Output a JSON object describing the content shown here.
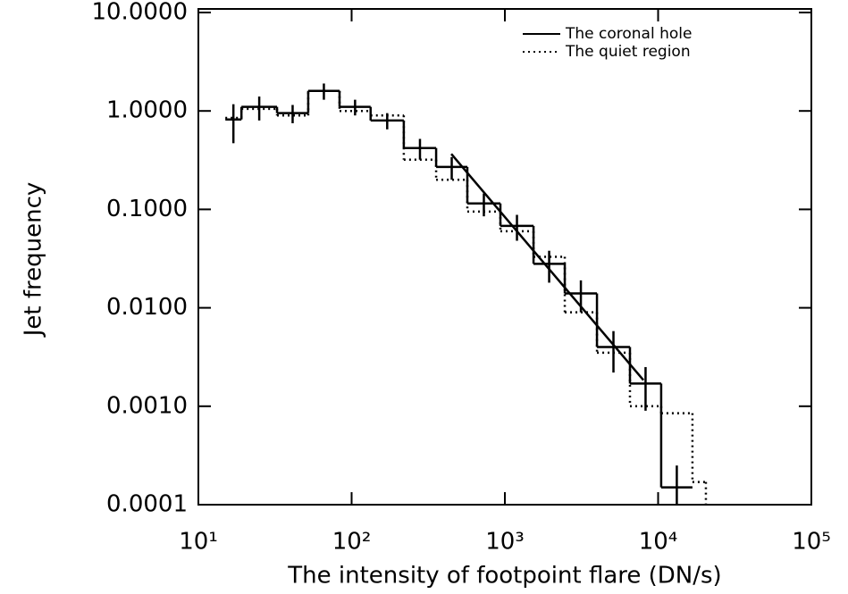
{
  "chart_data": {
    "type": "histogram",
    "xlabel": "The intensity of footpoint flare (DN/s)",
    "ylabel": "Jet frequency",
    "log_x": true,
    "log_y": true,
    "legend": "upper right",
    "bins": [
      15.0,
      19.1,
      32.6,
      52.1,
      83.4,
      133,
      219,
      356,
      569,
      935,
      1538,
      2460,
      3990,
      6550,
      10470,
      16750,
      20500
    ],
    "series": [
      {
        "name": "The coronal hole",
        "color": "#000000",
        "style": "solid",
        "values": [
          0.82,
          1.1,
          0.95,
          1.6,
          1.1,
          0.8,
          0.42,
          0.27,
          0.115,
          0.068,
          0.028,
          0.014,
          0.004,
          0.0017,
          0.00015,
          null
        ],
        "errors": [
          0.35,
          0.3,
          0.2,
          0.3,
          0.2,
          0.15,
          0.1,
          0.07,
          0.03,
          0.02,
          0.01,
          0.005,
          0.0018,
          0.0008,
          0.0001,
          null
        ]
      },
      {
        "name": "The quiet region",
        "color": "#000000",
        "style": "dotted",
        "values": [
          0.85,
          1.05,
          0.9,
          1.6,
          1.0,
          0.9,
          0.32,
          0.2,
          0.095,
          0.06,
          0.033,
          0.009,
          0.0035,
          0.001,
          0.00085,
          0.00017
        ]
      }
    ],
    "fit": {
      "x": [
        447,
        8020
      ],
      "y": [
        0.366,
        0.00184
      ]
    },
    "xlim": [
      10,
      100000
    ],
    "xticks": [
      {
        "value": 10,
        "label": "10¹"
      },
      {
        "value": 100,
        "label": "10²"
      },
      {
        "value": 1000,
        "label": "10³"
      },
      {
        "value": 10000,
        "label": "10⁴"
      },
      {
        "value": 100000,
        "label": "10⁵"
      }
    ],
    "ylim": [
      0.0001,
      10
    ],
    "yticks": [
      {
        "value": 0.0001,
        "label": "0.0001"
      },
      {
        "value": 0.001,
        "label": "0.0010"
      },
      {
        "value": 0.01,
        "label": "0.0100"
      },
      {
        "value": 0.1,
        "label": "0.1000"
      },
      {
        "value": 1,
        "label": "1.0000"
      },
      {
        "value": 10,
        "label": "10.0000"
      }
    ]
  }
}
